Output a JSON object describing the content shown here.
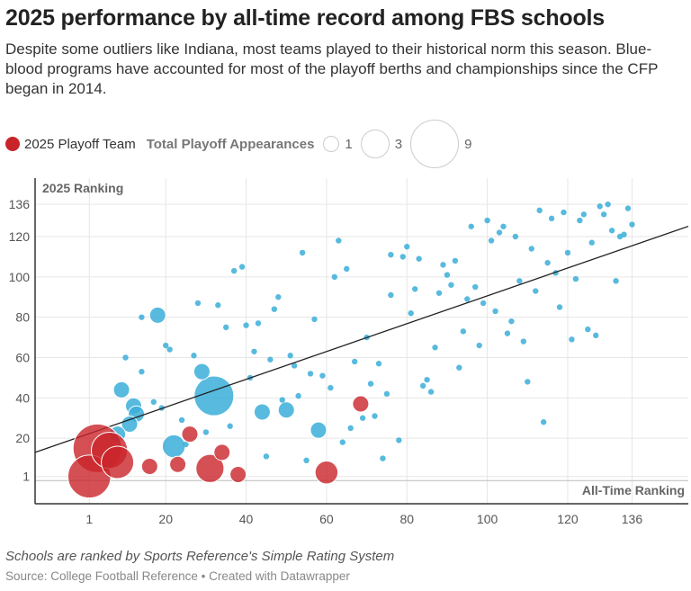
{
  "title": "2025 performance by all-time record among FBS schools",
  "subtitle": "Despite some outliers like Indiana, most teams played to their historical norm this season. Blue-blood programs have accounted for most of the playoff berths and championships since the CFP began in 2014.",
  "legend": {
    "playoff_label": "2025 Playoff Team",
    "size_title": "Total Playoff Appearances",
    "sizes": [
      "1",
      "3",
      "9"
    ]
  },
  "note": "Schools are ranked by Sports Reference's Simple Rating System",
  "source": "Source: College Football Reference • Created with Datawrapper",
  "colors": {
    "playoff": "#c9242a",
    "other": "#3aaed8",
    "trend": "#222222"
  },
  "chart_data": {
    "type": "scatter",
    "xlabel": "All-Time Ranking",
    "ylabel": "2025 Ranking",
    "xlim": [
      -12.5,
      150
    ],
    "ylim": [
      -12.5,
      149
    ],
    "xticks": [
      1,
      20,
      40,
      60,
      80,
      100,
      120,
      136
    ],
    "yticks": [
      1,
      20,
      40,
      60,
      80,
      100,
      120,
      136
    ],
    "grid": true,
    "size_encoding": "Total Playoff Appearances",
    "trendline": {
      "intercept": 21.6,
      "slope": 0.69
    },
    "playoff_teams": [
      [
        1,
        1,
        7
      ],
      [
        3,
        15,
        9
      ],
      [
        6,
        14,
        5
      ],
      [
        8,
        8,
        4
      ],
      [
        16,
        6,
        1
      ],
      [
        23,
        7,
        1
      ],
      [
        26,
        22,
        1
      ],
      [
        34,
        13,
        1
      ],
      [
        31,
        5,
        3
      ],
      [
        38,
        2,
        1
      ],
      [
        60,
        3,
        2
      ],
      [
        68.5,
        37,
        1
      ]
    ],
    "other_teams": [
      [
        32,
        41,
        6
      ],
      [
        18,
        81,
        1
      ],
      [
        29,
        53,
        1
      ],
      [
        9,
        44,
        1
      ],
      [
        12,
        36,
        1
      ],
      [
        12.7,
        32,
        1
      ],
      [
        11,
        27,
        1
      ],
      [
        8,
        22,
        1
      ],
      [
        22,
        16,
        2
      ],
      [
        44,
        33,
        1
      ],
      [
        50,
        34,
        1
      ],
      [
        58,
        24,
        1
      ],
      [
        14,
        80,
        0
      ],
      [
        10,
        60,
        0
      ],
      [
        14,
        53,
        0
      ],
      [
        17,
        38,
        0
      ],
      [
        19,
        35,
        0
      ],
      [
        20,
        66,
        0
      ],
      [
        21,
        64,
        0
      ],
      [
        24,
        29,
        0
      ],
      [
        25,
        17,
        0
      ],
      [
        27,
        61,
        0
      ],
      [
        28,
        87,
        0
      ],
      [
        30,
        23,
        0
      ],
      [
        33,
        86,
        0
      ],
      [
        35,
        75,
        0
      ],
      [
        36,
        26,
        0
      ],
      [
        37,
        103,
        0
      ],
      [
        39,
        105,
        0
      ],
      [
        40,
        76,
        0
      ],
      [
        41,
        50,
        0
      ],
      [
        42,
        63,
        0
      ],
      [
        43,
        77,
        0
      ],
      [
        45,
        11,
        0
      ],
      [
        46,
        59,
        0
      ],
      [
        47,
        84,
        0
      ],
      [
        48,
        90,
        0
      ],
      [
        49,
        39,
        0
      ],
      [
        51,
        61,
        0
      ],
      [
        52,
        56,
        0
      ],
      [
        53,
        41,
        0
      ],
      [
        54,
        112,
        0
      ],
      [
        55,
        9,
        0
      ],
      [
        56,
        52,
        0
      ],
      [
        57,
        79,
        0
      ],
      [
        59,
        51,
        0
      ],
      [
        61,
        45,
        0
      ],
      [
        62,
        100,
        0
      ],
      [
        63,
        118,
        0
      ],
      [
        64,
        18,
        0
      ],
      [
        65,
        104,
        0
      ],
      [
        66,
        25,
        0
      ],
      [
        67,
        58,
        0
      ],
      [
        70,
        70,
        0
      ],
      [
        69,
        30,
        0
      ],
      [
        71,
        47,
        0
      ],
      [
        72,
        31,
        0
      ],
      [
        73,
        57,
        0
      ],
      [
        74,
        10,
        0
      ],
      [
        75,
        42,
        0
      ],
      [
        76,
        111,
        0
      ],
      [
        76,
        91,
        0
      ],
      [
        78,
        19,
        0
      ],
      [
        79,
        110,
        0
      ],
      [
        80,
        115,
        0
      ],
      [
        81,
        82,
        0
      ],
      [
        82,
        94,
        0
      ],
      [
        83,
        109,
        0
      ],
      [
        84,
        46,
        0
      ],
      [
        85,
        49,
        0
      ],
      [
        86,
        43,
        0
      ],
      [
        87,
        65,
        0
      ],
      [
        88,
        92,
        0
      ],
      [
        89,
        106,
        0
      ],
      [
        90,
        101,
        0
      ],
      [
        91,
        96,
        0
      ],
      [
        92,
        108,
        0
      ],
      [
        93,
        55,
        0
      ],
      [
        94,
        73,
        0
      ],
      [
        95,
        89,
        0
      ],
      [
        96,
        125,
        0
      ],
      [
        97,
        95,
        0
      ],
      [
        98,
        66,
        0
      ],
      [
        99,
        87,
        0
      ],
      [
        100,
        128,
        0
      ],
      [
        101,
        118,
        0
      ],
      [
        102,
        83,
        0
      ],
      [
        103,
        122,
        0
      ],
      [
        104,
        125,
        0
      ],
      [
        105,
        72,
        0
      ],
      [
        106,
        78,
        0
      ],
      [
        107,
        120,
        0
      ],
      [
        108,
        98,
        0
      ],
      [
        109,
        68,
        0
      ],
      [
        110,
        48,
        0
      ],
      [
        111,
        114,
        0
      ],
      [
        112,
        93,
        0
      ],
      [
        113,
        133,
        0
      ],
      [
        114,
        28,
        0
      ],
      [
        115,
        107,
        0
      ],
      [
        116,
        129,
        0
      ],
      [
        117,
        102,
        0
      ],
      [
        118,
        85,
        0
      ],
      [
        119,
        132,
        0
      ],
      [
        120,
        112,
        0
      ],
      [
        121,
        69,
        0
      ],
      [
        122,
        99,
        0
      ],
      [
        123,
        128,
        0
      ],
      [
        124,
        131,
        0
      ],
      [
        125,
        74,
        0
      ],
      [
        126,
        117,
        0
      ],
      [
        127,
        71,
        0
      ],
      [
        128,
        135,
        0
      ],
      [
        129,
        131,
        0
      ],
      [
        130,
        136,
        0
      ],
      [
        131,
        123,
        0
      ],
      [
        132,
        98,
        0
      ],
      [
        133,
        120,
        0
      ],
      [
        134,
        121,
        0
      ],
      [
        135,
        134,
        0
      ],
      [
        136,
        126,
        0
      ]
    ]
  }
}
